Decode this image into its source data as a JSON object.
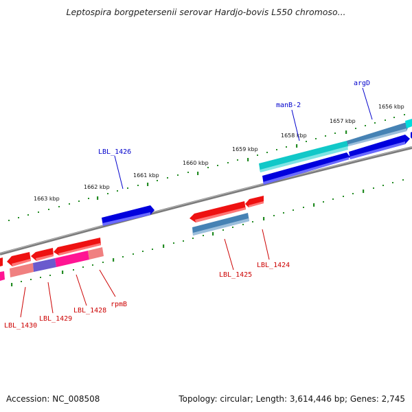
{
  "title": "Leptospira borgpetersenii serovar Hardjo-bovis L550 chromoso...",
  "footer": {
    "accession": "Accession: NC_008508",
    "summary": "Topology: circular; Length: 3,614,446 bp; Genes: 2,745"
  },
  "colors": {
    "backbone": "#7a7a7a",
    "tick": "#228b22",
    "forward_gene": "#0000dd",
    "reverse_gene": "#ee1111",
    "label_forward": "#0000cc",
    "label_reverse": "#cc0000"
  },
  "ticks": [
    "1656 kbp",
    "1657 kbp",
    "1658 kbp",
    "1659 kbp",
    "1660 kbp",
    "1661 kbp",
    "1662 kbp",
    "1663 kbp"
  ],
  "gene_labels": [
    "argD",
    "manB-2",
    "LBL_1426",
    "LBL_1424",
    "LBL_1425",
    "rpmB",
    "LBL_1428",
    "LBL_1429",
    "LBL_1430"
  ]
}
